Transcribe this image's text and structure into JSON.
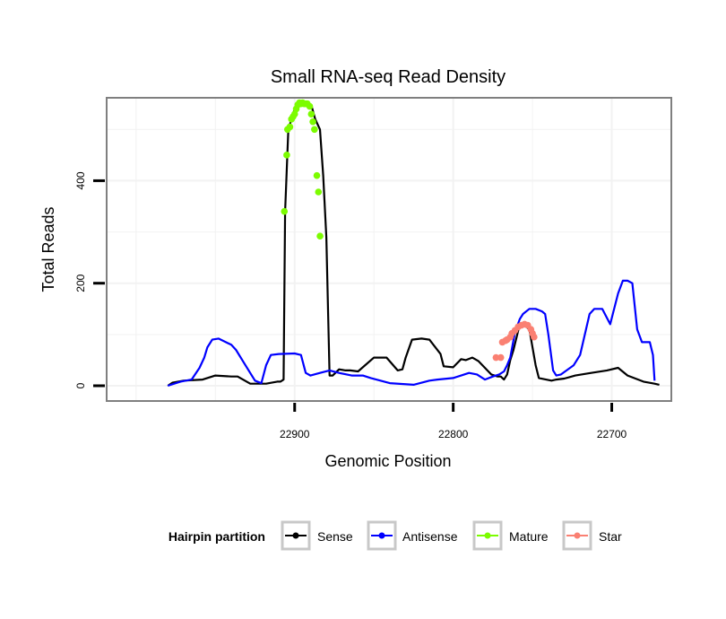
{
  "chart_data": {
    "type": "line",
    "title": "Small RNA-seq Read Density",
    "xlabel": "Genomic Position",
    "ylabel": "Total Reads",
    "xlim": [
      23018,
      22663
    ],
    "ylim": [
      -28,
      560
    ],
    "x_axis_reversed": true,
    "grid": true,
    "xticks": [
      22900,
      22800,
      22700
    ],
    "yticks": [
      0,
      200,
      400
    ],
    "legend": {
      "title": "Hairpin partition",
      "position": "bottom",
      "entries": [
        {
          "label": "Sense",
          "color": "#000000"
        },
        {
          "label": "Antisense",
          "color": "#0000ff"
        },
        {
          "label": "Mature",
          "color": "#7cfc00"
        },
        {
          "label": "Star",
          "color": "#fa8072"
        }
      ]
    },
    "series": [
      {
        "name": "Sense",
        "style": "line",
        "color": "#000000",
        "x": [
          22980,
          22977,
          22970,
          22958,
          22950,
          22940,
          22936,
          22928,
          22918,
          22911,
          22909,
          22908,
          22907,
          22906,
          22904,
          22900,
          22894,
          22889,
          22887,
          22884,
          22882,
          22880,
          22878,
          22876,
          22872,
          22868,
          22865,
          22860,
          22850,
          22842,
          22835,
          22832,
          22830,
          22826,
          22820,
          22815,
          22808,
          22806,
          22800,
          22795,
          22792,
          22788,
          22784,
          22776,
          22772,
          22770,
          22768,
          22766,
          22764,
          22762,
          22760,
          22758,
          22756,
          22752,
          22748,
          22746,
          22738,
          22735,
          22730,
          22723,
          22713,
          22703,
          22696,
          22690,
          22680,
          22673,
          22670
        ],
        "y": [
          0,
          6,
          10,
          12,
          20,
          18,
          18,
          4,
          4,
          8,
          8,
          10,
          12,
          340,
          500,
          540,
          550,
          542,
          520,
          500,
          410,
          290,
          20,
          20,
          32,
          30,
          30,
          28,
          55,
          55,
          30,
          32,
          55,
          90,
          92,
          90,
          62,
          38,
          36,
          52,
          50,
          55,
          48,
          22,
          18,
          18,
          12,
          22,
          50,
          70,
          95,
          120,
          120,
          110,
          40,
          15,
          10,
          12,
          14,
          20,
          25,
          30,
          35,
          20,
          8,
          4,
          2
        ]
      },
      {
        "name": "Antisense",
        "style": "line",
        "color": "#0000ff",
        "x": [
          22980,
          22972,
          22965,
          22960,
          22957,
          22955,
          22952,
          22948,
          22940,
          22937,
          22932,
          22925,
          22921,
          22918,
          22915,
          22910,
          22900,
          22896,
          22893,
          22890,
          22884,
          22878,
          22872,
          22864,
          22857,
          22852,
          22840,
          22825,
          22815,
          22810,
          22800,
          22795,
          22790,
          22785,
          22780,
          22775,
          22771,
          22768,
          22766,
          22764,
          22761,
          22758,
          22756,
          22752,
          22748,
          22744,
          22742,
          22740,
          22737,
          22735,
          22732,
          22724,
          22720,
          22717,
          22714,
          22711,
          22709,
          22706,
          22701,
          22696,
          22693,
          22690,
          22687,
          22684,
          22681,
          22676,
          22674,
          22673
        ],
        "y": [
          0,
          8,
          12,
          35,
          55,
          75,
          90,
          92,
          80,
          70,
          45,
          10,
          5,
          40,
          60,
          62,
          63,
          60,
          25,
          20,
          25,
          30,
          25,
          20,
          20,
          15,
          5,
          2,
          10,
          12,
          15,
          20,
          25,
          22,
          12,
          18,
          22,
          28,
          40,
          55,
          105,
          130,
          140,
          150,
          150,
          145,
          140,
          100,
          30,
          20,
          22,
          40,
          60,
          100,
          140,
          150,
          150,
          150,
          120,
          180,
          205,
          205,
          200,
          110,
          85,
          85,
          60,
          10
        ]
      },
      {
        "name": "Mature",
        "style": "points",
        "color": "#7cfc00",
        "x": [
          22906.5,
          22905,
          22904.5,
          22903,
          22902,
          22901,
          22900,
          22899,
          22898,
          22897,
          22896,
          22895,
          22894,
          22893,
          22892,
          22890.5,
          22889.5,
          22888.5,
          22887.5,
          22886,
          22885,
          22884
        ],
        "y": [
          340,
          450,
          500,
          505,
          520,
          525,
          530,
          540,
          548,
          552,
          550,
          552,
          550,
          550,
          550,
          545,
          530,
          515,
          500,
          410,
          378,
          292
        ]
      },
      {
        "name": "Star",
        "style": "points",
        "color": "#fa8072",
        "x": [
          22773,
          22770,
          22769,
          22767,
          22766,
          22764,
          22763,
          22761,
          22759,
          22757,
          22755,
          22753,
          22751,
          22750,
          22749
        ],
        "y": [
          55,
          55,
          85,
          88,
          90,
          95,
          102,
          108,
          115,
          118,
          120,
          118,
          110,
          102,
          95
        ]
      }
    ]
  }
}
